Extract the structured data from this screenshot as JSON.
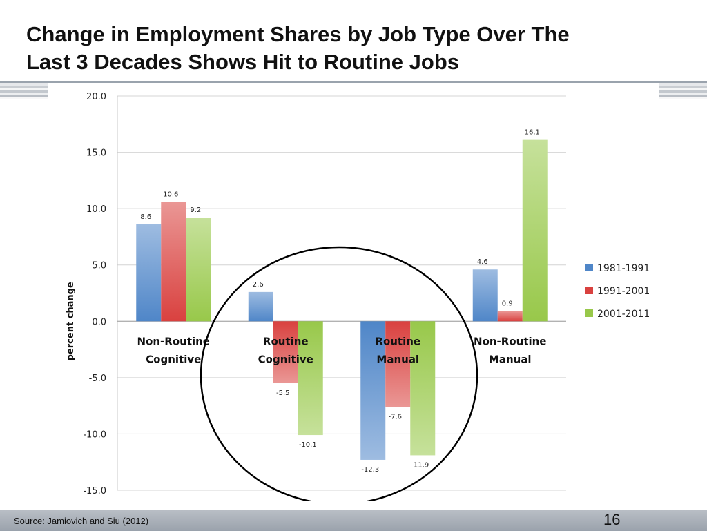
{
  "slide": {
    "title_lines": [
      "Change in Employment Shares by Job Type Over The",
      "Last 3 Decades Shows Hit to Routine Jobs"
    ],
    "source": "Source: Jamiovich and Siu (2012)",
    "page_number": "16"
  },
  "chart_data": {
    "type": "bar",
    "title": "",
    "xlabel": "",
    "ylabel": "percent change",
    "ylim": [
      -15,
      20
    ],
    "yticks": [
      "20.0",
      "15.0",
      "10.0",
      "5.0",
      "0.0",
      "-5.0",
      "-10.0",
      "-15.0"
    ],
    "categories": [
      [
        "Non-Routine",
        "Cognitive"
      ],
      [
        "Routine",
        "Cognitive"
      ],
      [
        "Routine",
        "Manual"
      ],
      [
        "Non-Routine",
        "Manual"
      ]
    ],
    "series": [
      {
        "name": "1981-1991",
        "values": [
          8.6,
          2.6,
          -12.3,
          4.6
        ],
        "labels": [
          "8.6",
          "2.6",
          "-12.3",
          "4.6"
        ],
        "color": "#4f86c8"
      },
      {
        "name": "1991-2001",
        "values": [
          10.6,
          -5.5,
          -7.6,
          0.9
        ],
        "labels": [
          "10.6",
          "-5.5",
          "-7.6",
          "0.9"
        ],
        "color": "#d9413f"
      },
      {
        "name": "2001-2011",
        "values": [
          9.2,
          -10.1,
          -11.9,
          16.1
        ],
        "labels": [
          "9.2",
          "-10.1",
          "-11.9",
          "16.1"
        ],
        "color": "#98c84a"
      }
    ],
    "grid": true,
    "legend_position": "right",
    "annotation": "circle around Routine Cognitive and Routine Manual"
  }
}
